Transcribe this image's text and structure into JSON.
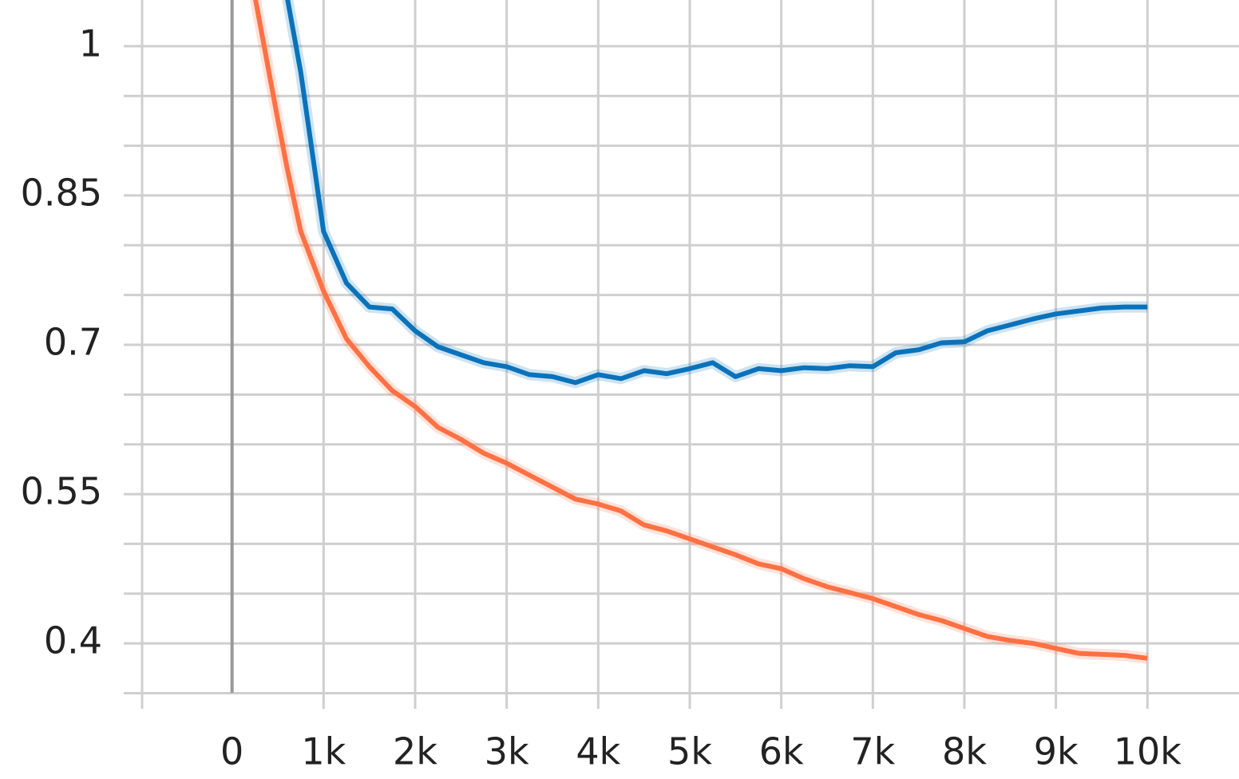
{
  "chart_data": {
    "type": "line",
    "x": [
      250,
      500,
      600,
      750,
      1000,
      1250,
      1500,
      1750,
      2000,
      2250,
      2500,
      2750,
      3000,
      3250,
      3500,
      3750,
      4000,
      4250,
      4500,
      4750,
      5000,
      5250,
      5500,
      5750,
      6000,
      6250,
      6500,
      6750,
      7000,
      7250,
      7500,
      7750,
      8000,
      8250,
      8500,
      8750,
      9000,
      9250,
      9500,
      9750,
      10000
    ],
    "series": [
      {
        "color": "#0a72ba",
        "values": [
          null,
          null,
          1.05,
          0.974,
          0.814,
          0.762,
          0.738,
          0.736,
          0.714,
          0.698,
          0.69,
          0.682,
          0.678,
          0.67,
          0.668,
          0.662,
          0.67,
          0.666,
          0.674,
          0.671,
          0.676,
          0.682,
          0.668,
          0.676,
          0.674,
          0.677,
          0.676,
          0.679,
          0.678,
          0.692,
          0.695,
          0.702,
          0.703,
          0.714,
          0.72,
          0.726,
          0.731,
          0.734,
          0.737,
          0.738,
          0.738
        ]
      },
      {
        "color": "#ff7043",
        "values": [
          1.05,
          0.926,
          0.878,
          0.814,
          0.754,
          0.706,
          0.678,
          0.654,
          0.638,
          0.617,
          0.605,
          0.591,
          0.581,
          0.569,
          0.557,
          0.545,
          0.54,
          0.533,
          0.519,
          0.513,
          0.505,
          0.497,
          0.489,
          0.48,
          0.475,
          0.465,
          0.457,
          0.451,
          0.445,
          0.437,
          0.429,
          0.423,
          0.415,
          0.407,
          0.403,
          0.4,
          0.395,
          0.39,
          0.389,
          0.388,
          0.385
        ]
      }
    ],
    "xlim": [
      -1000,
      11000
    ],
    "xticks": [
      {
        "value": 0,
        "label": "0"
      },
      {
        "value": 1000,
        "label": "1k"
      },
      {
        "value": 2000,
        "label": "2k"
      },
      {
        "value": 3000,
        "label": "3k"
      },
      {
        "value": 4000,
        "label": "4k"
      },
      {
        "value": 5000,
        "label": "5k"
      },
      {
        "value": 6000,
        "label": "6k"
      },
      {
        "value": 7000,
        "label": "7k"
      },
      {
        "value": 8000,
        "label": "8k"
      },
      {
        "value": 9000,
        "label": "9k"
      },
      {
        "value": 10000,
        "label": "10k"
      }
    ],
    "ylim": [
      0.35,
      1.05
    ],
    "yticks": [
      0.4,
      0.55,
      0.7,
      0.85,
      1
    ],
    "yticks_minor": [
      0.35,
      0.45,
      0.5,
      0.6,
      0.65,
      0.75,
      0.8,
      0.9,
      0.95
    ],
    "grid": true
  }
}
